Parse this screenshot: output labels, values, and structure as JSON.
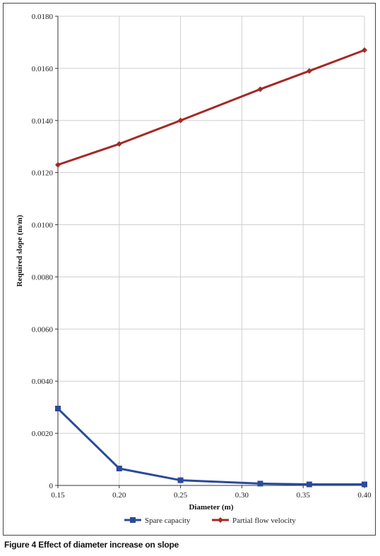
{
  "chart_data": {
    "type": "line",
    "title": "",
    "xlabel": "Diameter (m)",
    "ylabel": "Required slope (m/m)",
    "xlim": [
      0.15,
      0.4
    ],
    "ylim": [
      0,
      0.018
    ],
    "x_ticks": [
      "0.15",
      "0.20",
      "0.25",
      "0.30",
      "0.35",
      "0.40"
    ],
    "y_ticks": [
      "0",
      "0.0020",
      "0.0040",
      "0.0060",
      "0.0080",
      "0.0100",
      "0.0120",
      "0.0140",
      "0.0160",
      "0.0180"
    ],
    "grid": true,
    "legend_position": "bottom",
    "series": [
      {
        "name": "Spare capacity",
        "color": "#2a4a9a",
        "marker": "square",
        "x": [
          0.15,
          0.2,
          0.25,
          0.315,
          0.355,
          0.4
        ],
        "y": [
          0.00295,
          0.00065,
          0.0002,
          7e-05,
          4e-05,
          4e-05
        ]
      },
      {
        "name": "Partial flow velocity",
        "color": "#a32a25",
        "marker": "diamond",
        "x": [
          0.15,
          0.2,
          0.25,
          0.315,
          0.355,
          0.4
        ],
        "y": [
          0.0123,
          0.0131,
          0.014,
          0.0152,
          0.0159,
          0.0167
        ]
      }
    ]
  },
  "caption": {
    "label": "Figure 4",
    "text": "Effect of diameter increase on slope"
  }
}
